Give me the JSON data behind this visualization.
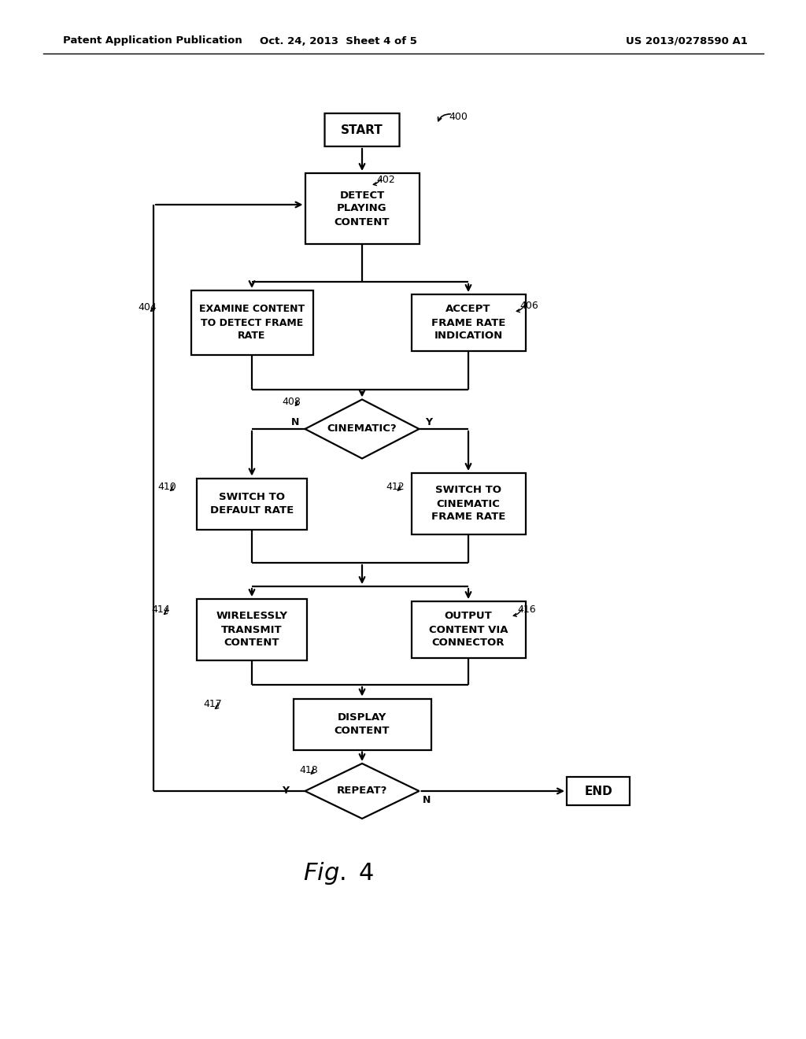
{
  "bg_color": "#ffffff",
  "header_left": "Patent Application Publication",
  "header_center": "Oct. 24, 2013  Sheet 4 of 5",
  "header_right": "US 2013/0278590 A1",
  "footer_label": "Fig. 4",
  "lw": 1.6
}
